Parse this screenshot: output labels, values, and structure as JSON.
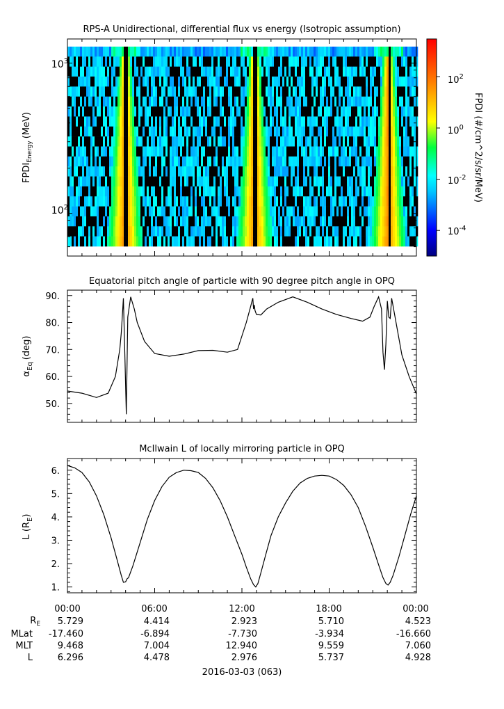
{
  "panels": {
    "spectrogram": {
      "title": "RPS-A Unidirectional, differential flux vs energy (Isotropic assumption)",
      "ylabel_main": "FPDI",
      "ylabel_sub": "Energy",
      "ylabel_unit": "(MeV)",
      "ytick_labels": [
        {
          "base": "10",
          "exp": "3"
        },
        {
          "base": "10",
          "exp": "2"
        }
      ],
      "colorbar_label": "FPDI (#/cm^2/s/sr/MeV)",
      "colorbar_tick_labels": [
        {
          "base": "10",
          "exp": "2"
        },
        {
          "base": "10",
          "exp": "0"
        },
        {
          "base": "10",
          "exp": "-2"
        },
        {
          "base": "10",
          "exp": "-4"
        }
      ]
    },
    "pitch": {
      "title": "Equatorial pitch angle of particle with 90 degree pitch angle in OPQ",
      "ylabel_main": "α",
      "ylabel_sub": "Eq",
      "ylabel_unit": "(deg)",
      "ytick_labels": [
        "90.",
        "80.",
        "70.",
        "60.",
        "50."
      ]
    },
    "lshell": {
      "title": "McIlwain L of locally mirroring particle in OPQ",
      "ylabel_main": "L (R",
      "ylabel_sub": "E",
      "ylabel_end": ")",
      "ytick_labels": [
        "6.",
        "5.",
        "4.",
        "3.",
        "2.",
        "1."
      ]
    }
  },
  "xaxis": {
    "time_labels": [
      "00:00",
      "06:00",
      "12:00",
      "18:00",
      "00:00"
    ],
    "row_labels": [
      {
        "main": "R",
        "sub": "E"
      },
      {
        "main": "MLat",
        "sub": ""
      },
      {
        "main": "MLT",
        "sub": ""
      },
      {
        "main": "L",
        "sub": ""
      }
    ],
    "rows": [
      [
        "5.729",
        "4.414",
        "2.923",
        "5.710",
        "4.523"
      ],
      [
        "-17.460",
        "-6.894",
        "-7.730",
        "-3.934",
        "-16.660"
      ],
      [
        "9.468",
        "7.004",
        "12.940",
        "9.559",
        "7.060"
      ],
      [
        "6.296",
        "4.478",
        "2.976",
        "5.737",
        "4.928"
      ]
    ],
    "date_label": "2016-03-03 (063)"
  },
  "chart_data": [
    {
      "type": "heatmap",
      "title": "RPS-A Unidirectional, differential flux vs energy (Isotropic assumption)",
      "ylabel": "FPDI Energy (MeV)",
      "yscale": "log",
      "ylim": [
        52,
        1450
      ],
      "xlim_hours": [
        0,
        24
      ],
      "colorbar": {
        "label": "FPDI (#/cm^2/s/sr/MeV)",
        "scale": "log",
        "lim": [
          1e-05,
          3000.0
        ],
        "colormap": "rainbow"
      },
      "peak_flux_hours": [
        3.9,
        12.8,
        22.0
      ],
      "gap_hours": [
        3.95,
        12.85,
        22.05
      ]
    },
    {
      "type": "line",
      "title": "Equatorial pitch angle of particle with 90 degree pitch angle in OPQ",
      "ylabel": "α Eq (deg)",
      "ylim": [
        43,
        92
      ],
      "xlim_hours": [
        0,
        24
      ],
      "x": [
        0,
        1,
        2,
        2.8,
        3.3,
        3.6,
        3.7,
        3.75,
        3.85,
        3.95,
        4.05,
        4.15,
        4.35,
        4.6,
        4.8,
        5.3,
        6,
        7,
        8,
        9,
        10,
        11,
        11.7,
        12.3,
        12.6,
        12.7,
        12.75,
        12.8,
        12.85,
        12.9,
        13.0,
        13.3,
        13.7,
        14.5,
        15.5,
        16.5,
        17.5,
        18.5,
        19.5,
        20.3,
        20.8,
        21.1,
        21.4,
        21.6,
        21.7,
        21.8,
        21.9,
        22.0,
        22.1,
        22.2,
        22.3,
        22.6,
        23,
        23.5,
        24
      ],
      "y": [
        54.6,
        53.8,
        52.2,
        53.8,
        60,
        70,
        76,
        80,
        89,
        68,
        46,
        82,
        89.5,
        85,
        80,
        73,
        68.5,
        67.5,
        68.3,
        69.6,
        69.7,
        69,
        70,
        80,
        86,
        88,
        89,
        85,
        86.5,
        84.5,
        83,
        82.8,
        85,
        87.5,
        89.5,
        87.5,
        85,
        83,
        81.5,
        80.5,
        82,
        86,
        89.5,
        85,
        69,
        62.5,
        72,
        88,
        82,
        81.5,
        89,
        80,
        68,
        60,
        53.5
      ]
    },
    {
      "type": "line",
      "title": "McIlwain L of locally mirroring particle in OPQ",
      "ylabel": "L (RE)",
      "ylim": [
        0.75,
        6.5
      ],
      "xlim_hours": [
        0,
        24
      ],
      "x": [
        0,
        0.5,
        1,
        1.5,
        2,
        2.5,
        3,
        3.4,
        3.7,
        3.85,
        4.0,
        4.1,
        4.2,
        4.5,
        5,
        5.5,
        6,
        6.5,
        7,
        7.5,
        8,
        8.5,
        9,
        9.5,
        10,
        10.5,
        11,
        11.5,
        12,
        12.3,
        12.6,
        12.8,
        12.95,
        13.1,
        13.3,
        13.6,
        14,
        14.5,
        15,
        15.5,
        16,
        16.5,
        17,
        17.5,
        18,
        18.5,
        19,
        19.5,
        20,
        20.5,
        21,
        21.4,
        21.7,
        21.9,
        22.05,
        22.2,
        22.4,
        22.8,
        23.2,
        23.6,
        24
      ],
      "y": [
        6.2,
        6.1,
        5.9,
        5.5,
        4.9,
        4.1,
        3.1,
        2.2,
        1.5,
        1.2,
        1.22,
        1.35,
        1.4,
        1.9,
        2.9,
        3.9,
        4.7,
        5.3,
        5.7,
        5.9,
        6.0,
        5.98,
        5.9,
        5.65,
        5.25,
        4.7,
        4.0,
        3.2,
        2.4,
        1.85,
        1.35,
        1.1,
        1.0,
        1.15,
        1.6,
        2.3,
        3.2,
        4.0,
        4.6,
        5.1,
        5.45,
        5.65,
        5.75,
        5.78,
        5.75,
        5.6,
        5.35,
        4.95,
        4.4,
        3.6,
        2.7,
        1.95,
        1.4,
        1.15,
        1.08,
        1.2,
        1.5,
        2.3,
        3.2,
        4.1,
        4.9
      ]
    }
  ]
}
